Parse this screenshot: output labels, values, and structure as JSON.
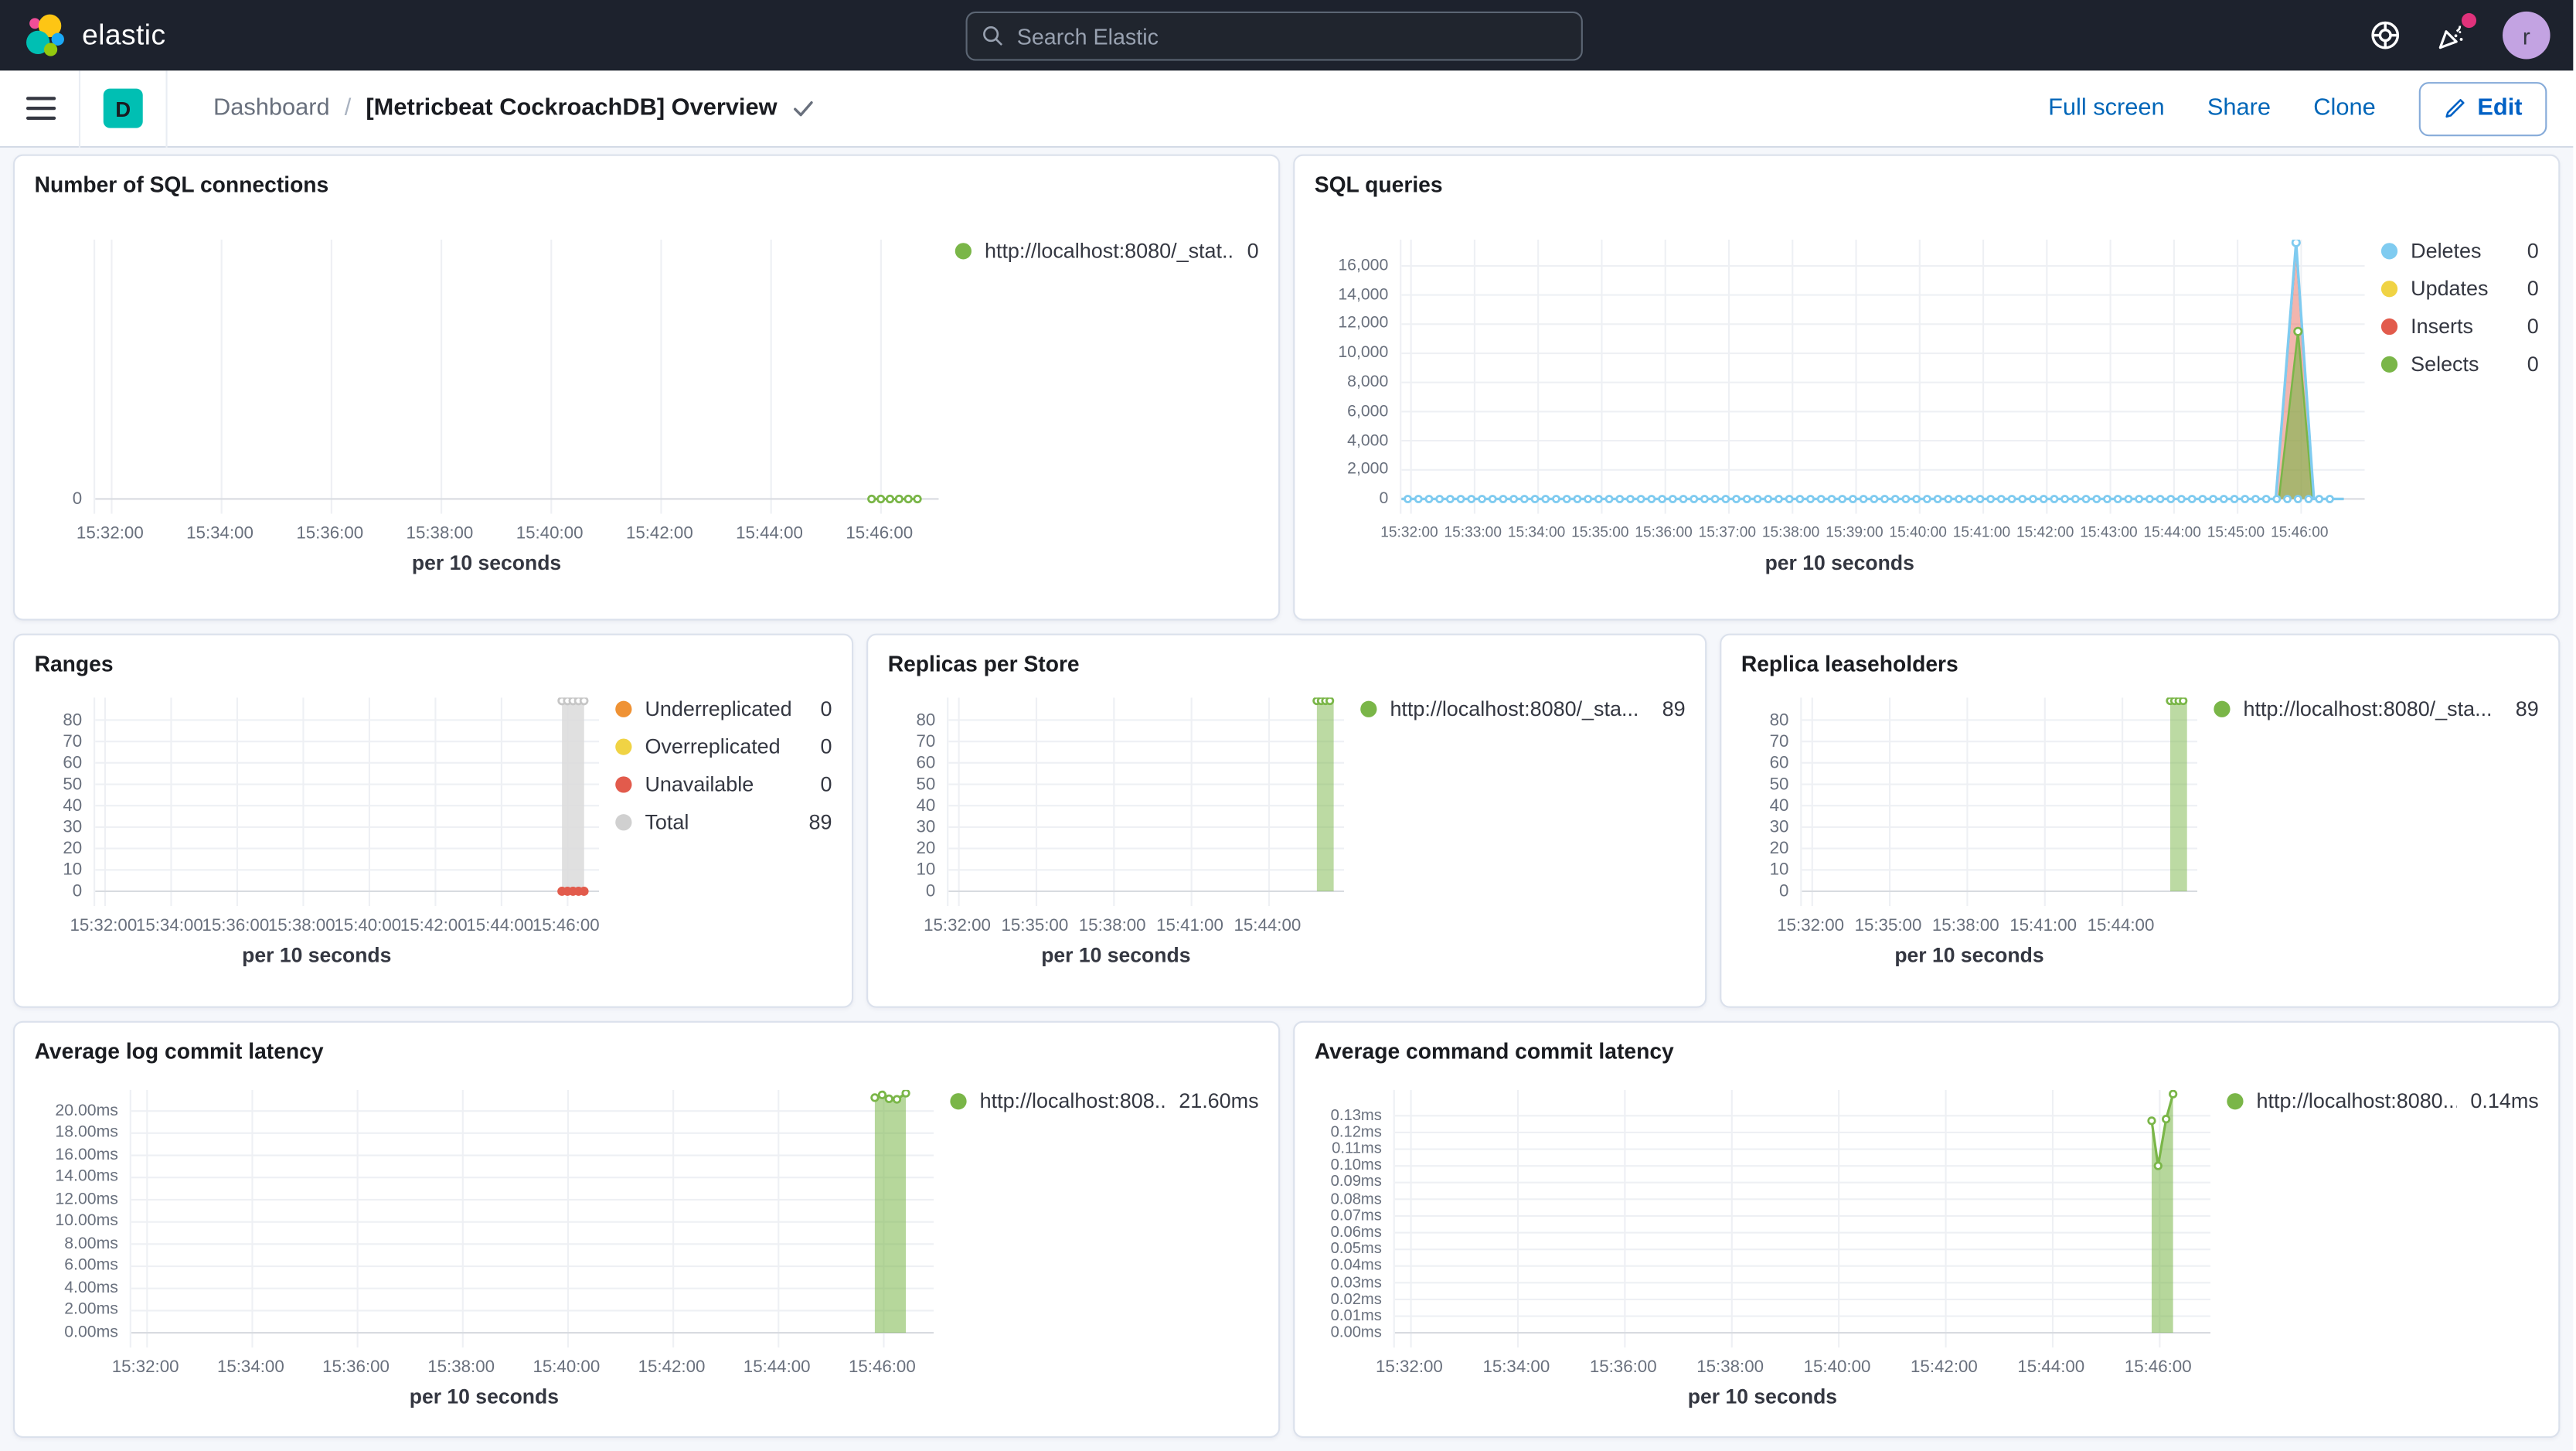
{
  "header": {
    "logo_text": "elastic",
    "search_placeholder": "Search Elastic"
  },
  "toolbar": {
    "space_badge": "D",
    "breadcrumb_root": "Dashboard",
    "breadcrumb_sep": "/",
    "title": "[Metricbeat CockroachDB] Overview",
    "full_screen_label": "Full screen",
    "share_label": "Share",
    "clone_label": "Clone",
    "edit_label": "Edit"
  },
  "colors": {
    "accent_teal": "#00bfb3",
    "link_blue": "#0066b8",
    "green": "#7ab648",
    "blue": "#7fcbf0",
    "yellow": "#f0d344",
    "red": "#e25b4c",
    "orange": "#ef9234",
    "gray": "#d0d0d0"
  },
  "chart_data": [
    {
      "id": "sql_connections",
      "type": "line",
      "title": "Number of SQL connections",
      "xlabel": "per 10 seconds",
      "x0": 931.7,
      "x1": 947.05,
      "ymax": 1,
      "pad_bottom": 9,
      "yw": 36,
      "lw": 185,
      "x_ticks": [
        {
          "t": 932,
          "label": "15:32:00"
        },
        {
          "t": 934,
          "label": "15:34:00"
        },
        {
          "t": 936,
          "label": "15:36:00"
        },
        {
          "t": 938,
          "label": "15:38:00"
        },
        {
          "t": 940,
          "label": "15:40:00"
        },
        {
          "t": 942,
          "label": "15:42:00"
        },
        {
          "t": 944,
          "label": "15:44:00"
        },
        {
          "t": 946,
          "label": "15:46:00"
        }
      ],
      "y_ticks": [
        {
          "v": 0,
          "label": "0"
        }
      ],
      "series": [
        {
          "name": "connections",
          "color": "#7ab648",
          "flat": 0,
          "from": 945.83,
          "to": 946.67,
          "step_s": 10,
          "w": 1.4,
          "markers": "pts",
          "mr": 2
        }
      ],
      "legend": {
        "items": [
          {
            "label": "http://localhost:8080/_stat...",
            "value": "0",
            "color": "#7ab648"
          }
        ]
      }
    },
    {
      "id": "sql_queries",
      "type": "area",
      "title": "SQL queries",
      "xlabel": "per 10 seconds",
      "x0": 931.85,
      "x1": 947.0,
      "ymax": 17800,
      "pad_bottom": 9,
      "yw": 52,
      "lw": 96,
      "xfs": "9px",
      "yfs": "10px",
      "x_ticks": [
        {
          "t": 932,
          "label": "15:32:00"
        },
        {
          "t": 933,
          "label": "15:33:00"
        },
        {
          "t": 934,
          "label": "15:34:00"
        },
        {
          "t": 935,
          "label": "15:35:00"
        },
        {
          "t": 936,
          "label": "15:36:00"
        },
        {
          "t": 937,
          "label": "15:37:00"
        },
        {
          "t": 938,
          "label": "15:38:00"
        },
        {
          "t": 939,
          "label": "15:39:00"
        },
        {
          "t": 940,
          "label": "15:40:00"
        },
        {
          "t": 941,
          "label": "15:41:00"
        },
        {
          "t": 942,
          "label": "15:42:00"
        },
        {
          "t": 943,
          "label": "15:43:00"
        },
        {
          "t": 944,
          "label": "15:44:00"
        },
        {
          "t": 945,
          "label": "15:45:00"
        },
        {
          "t": 946,
          "label": "15:46:00"
        }
      ],
      "y_ticks": [
        {
          "v": 0,
          "label": "0"
        },
        {
          "v": 2000,
          "label": "2,000"
        },
        {
          "v": 4000,
          "label": "4,000"
        },
        {
          "v": 6000,
          "label": "6,000"
        },
        {
          "v": 8000,
          "label": "8,000"
        },
        {
          "v": 10000,
          "label": "10,000"
        },
        {
          "v": 12000,
          "label": "12,000"
        },
        {
          "v": 14000,
          "label": "14,000"
        },
        {
          "v": 16000,
          "label": "16,000"
        }
      ],
      "series": [
        {
          "name": "Inserts",
          "color": "#e25b4c",
          "area": true,
          "fillop": 0.45,
          "w": 1.2,
          "points": [
            [
              931.85,
              0
            ],
            [
              945.6,
              0
            ],
            [
              945.92,
              17300
            ],
            [
              946.2,
              0
            ],
            [
              946.67,
              0
            ]
          ]
        },
        {
          "name": "Selects",
          "color": "#7ab648",
          "area": true,
          "fillop": 0.6,
          "w": 1.2,
          "points": [
            [
              931.85,
              0
            ],
            [
              945.65,
              0
            ],
            [
              945.95,
              11500
            ],
            [
              946.18,
              0
            ],
            [
              946.67,
              0
            ]
          ]
        },
        {
          "name": "Deletes",
          "color": "#7fcbf0",
          "w": 1.6,
          "points": [
            [
              931.85,
              0
            ],
            [
              945.6,
              0
            ],
            [
              945.92,
              17600
            ],
            [
              946.2,
              0
            ],
            [
              946.67,
              0
            ]
          ]
        },
        {
          "name": "Deletes zero markers",
          "color": "#7fcbf0",
          "kind": "dots",
          "mr": 1.9,
          "flat": 0,
          "from": 931.95,
          "to": 946.6,
          "step_s": 10
        },
        {
          "name": "Deletes peak marker",
          "color": "#7fcbf0",
          "kind": "dots",
          "mr": 2.2,
          "points": [
            [
              945.92,
              17600
            ]
          ]
        },
        {
          "name": "Selects peak marker",
          "color": "#7ab648",
          "kind": "dots",
          "mr": 2.2,
          "points": [
            [
              945.95,
              11500
            ]
          ]
        }
      ],
      "legend": {
        "items": [
          {
            "label": "Deletes",
            "value": "0",
            "color": "#7fcbf0"
          },
          {
            "label": "Updates",
            "value": "0",
            "color": "#f0d344"
          },
          {
            "label": "Inserts",
            "value": "0",
            "color": "#e25b4c"
          },
          {
            "label": "Selects",
            "value": "0",
            "color": "#7ab648"
          }
        ]
      }
    },
    {
      "id": "ranges",
      "type": "area",
      "title": "Ranges",
      "xlabel": "per 10 seconds",
      "x0": 931.7,
      "x1": 946.95,
      "ymax": 90.5,
      "pad_bottom": 9,
      "yw": 36,
      "lw": 132,
      "x_ticks": [
        {
          "t": 932,
          "label": "15:32:00"
        },
        {
          "t": 934,
          "label": "15:34:00"
        },
        {
          "t": 936,
          "label": "15:36:00"
        },
        {
          "t": 938,
          "label": "15:38:00"
        },
        {
          "t": 940,
          "label": "15:40:00"
        },
        {
          "t": 942,
          "label": "15:42:00"
        },
        {
          "t": 944,
          "label": "15:44:00"
        },
        {
          "t": 946,
          "label": "15:46:00"
        }
      ],
      "y_ticks": [
        {
          "v": 0,
          "label": "0"
        },
        {
          "v": 10,
          "label": "10"
        },
        {
          "v": 20,
          "label": "20"
        },
        {
          "v": 30,
          "label": "30"
        },
        {
          "v": 40,
          "label": "40"
        },
        {
          "v": 50,
          "label": "50"
        },
        {
          "v": 60,
          "label": "60"
        },
        {
          "v": 70,
          "label": "70"
        },
        {
          "v": 80,
          "label": "80"
        }
      ],
      "series": [
        {
          "name": "Total",
          "color": "#dadada",
          "area": true,
          "fillop": 0.85,
          "stroke": false,
          "points": [
            [
              945.83,
              89
            ],
            [
              946.5,
              89
            ]
          ]
        },
        {
          "name": "Total markers",
          "color": "#c6c6c6",
          "kind": "dots",
          "mr": 2.1,
          "flat": 89,
          "from": 945.83,
          "to": 946.5,
          "step_s": 10
        },
        {
          "name": "Unavailable",
          "color": "#e25b4c",
          "kind": "dots",
          "solid": true,
          "mr": 2.8,
          "flat": 0,
          "from": 945.83,
          "to": 946.5,
          "step_s": 10
        }
      ],
      "legend": {
        "items": [
          {
            "label": "Underreplicated",
            "value": "0",
            "color": "#ef9234"
          },
          {
            "label": "Overreplicated",
            "value": "0",
            "color": "#f0d344"
          },
          {
            "label": "Unavailable",
            "value": "0",
            "color": "#e25b4c"
          },
          {
            "label": "Total",
            "value": "89",
            "color": "#d0d0d0"
          }
        ]
      }
    },
    {
      "id": "replicas_per_store",
      "type": "area",
      "title": "Replicas per Store",
      "xlabel": "per 10 seconds",
      "x0": 931.6,
      "x1": 946.9,
      "ymax": 90.5,
      "pad_bottom": 9,
      "yw": 36,
      "lw": 198,
      "x_ticks": [
        {
          "t": 932,
          "label": "15:32:00"
        },
        {
          "t": 935,
          "label": "15:35:00"
        },
        {
          "t": 938,
          "label": "15:38:00"
        },
        {
          "t": 941,
          "label": "15:41:00"
        },
        {
          "t": 944,
          "label": "15:44:00"
        }
      ],
      "y_ticks": [
        {
          "v": 0,
          "label": "0"
        },
        {
          "v": 10,
          "label": "10"
        },
        {
          "v": 20,
          "label": "20"
        },
        {
          "v": 30,
          "label": "30"
        },
        {
          "v": 40,
          "label": "40"
        },
        {
          "v": 50,
          "label": "50"
        },
        {
          "v": 60,
          "label": "60"
        },
        {
          "v": 70,
          "label": "70"
        },
        {
          "v": 80,
          "label": "80"
        }
      ],
      "series": [
        {
          "name": "replicas",
          "color": "#7ab648",
          "area": true,
          "fillop": 0.5,
          "w": 1.4,
          "points": [
            [
              945.85,
              89
            ],
            [
              946.5,
              89
            ]
          ]
        },
        {
          "name": "replicas markers",
          "color": "#7ab648",
          "kind": "dots",
          "mr": 2,
          "flat": 89,
          "from": 945.85,
          "to": 946.5,
          "step_s": 10
        }
      ],
      "legend": {
        "items": [
          {
            "label": "http://localhost:8080/_sta...",
            "value": "89",
            "color": "#7ab648"
          }
        ]
      }
    },
    {
      "id": "replica_leaseholders",
      "type": "area",
      "title": "Replica leaseholders",
      "xlabel": "per 10 seconds",
      "x0": 931.6,
      "x1": 946.9,
      "ymax": 90.5,
      "pad_bottom": 9,
      "yw": 36,
      "lw": 198,
      "x_ticks": [
        {
          "t": 932,
          "label": "15:32:00"
        },
        {
          "t": 935,
          "label": "15:35:00"
        },
        {
          "t": 938,
          "label": "15:38:00"
        },
        {
          "t": 941,
          "label": "15:41:00"
        },
        {
          "t": 944,
          "label": "15:44:00"
        }
      ],
      "y_ticks": [
        {
          "v": 0,
          "label": "0"
        },
        {
          "v": 10,
          "label": "10"
        },
        {
          "v": 20,
          "label": "20"
        },
        {
          "v": 30,
          "label": "30"
        },
        {
          "v": 40,
          "label": "40"
        },
        {
          "v": 50,
          "label": "50"
        },
        {
          "v": 60,
          "label": "60"
        },
        {
          "v": 70,
          "label": "70"
        },
        {
          "v": 80,
          "label": "80"
        }
      ],
      "series": [
        {
          "name": "leaseholders",
          "color": "#7ab648",
          "area": true,
          "fillop": 0.5,
          "w": 1.4,
          "points": [
            [
              945.85,
              89
            ],
            [
              946.5,
              89
            ]
          ]
        },
        {
          "name": "leaseholders markers",
          "color": "#7ab648",
          "kind": "dots",
          "mr": 2,
          "flat": 89,
          "from": 945.85,
          "to": 946.5,
          "step_s": 10
        }
      ],
      "legend": {
        "items": [
          {
            "label": "http://localhost:8080/_sta...",
            "value": "89",
            "color": "#7ab648"
          }
        ]
      }
    },
    {
      "id": "avg_log_commit_latency",
      "type": "area",
      "title": "Average log commit latency",
      "xlabel": "per 10 seconds",
      "x0": 931.7,
      "x1": 946.95,
      "ymax": 21.9,
      "pad_bottom": 9,
      "yw": 58,
      "lw": 188,
      "yfs": "10px",
      "x_ticks": [
        {
          "t": 932,
          "label": "15:32:00"
        },
        {
          "t": 934,
          "label": "15:34:00"
        },
        {
          "t": 936,
          "label": "15:36:00"
        },
        {
          "t": 938,
          "label": "15:38:00"
        },
        {
          "t": 940,
          "label": "15:40:00"
        },
        {
          "t": 942,
          "label": "15:42:00"
        },
        {
          "t": 944,
          "label": "15:44:00"
        },
        {
          "t": 946,
          "label": "15:46:00"
        }
      ],
      "y_ticks": [
        {
          "v": 0,
          "label": "0.00ms"
        },
        {
          "v": 2,
          "label": "2.00ms"
        },
        {
          "v": 4,
          "label": "4.00ms"
        },
        {
          "v": 6,
          "label": "6.00ms"
        },
        {
          "v": 8,
          "label": "8.00ms"
        },
        {
          "v": 10,
          "label": "10.00ms"
        },
        {
          "v": 12,
          "label": "12.00ms"
        },
        {
          "v": 14,
          "label": "14.00ms"
        },
        {
          "v": 16,
          "label": "16.00ms"
        },
        {
          "v": 18,
          "label": "18.00ms"
        },
        {
          "v": 20,
          "label": "20.00ms"
        }
      ],
      "series": [
        {
          "name": "log commit latency",
          "color": "#7ab648",
          "area": true,
          "fillop": 0.55,
          "w": 1.5,
          "markers": "pts",
          "mr": 2,
          "points": [
            [
              945.83,
              21.2
            ],
            [
              945.97,
              21.45
            ],
            [
              946.1,
              21.1
            ],
            [
              946.25,
              21.05
            ],
            [
              946.42,
              21.6
            ]
          ]
        }
      ],
      "legend": {
        "items": [
          {
            "label": "http://localhost:808...",
            "value": "21.60ms",
            "color": "#7ab648"
          }
        ]
      }
    },
    {
      "id": "avg_command_commit_latency",
      "type": "area",
      "title": "Average command commit latency",
      "xlabel": "per 10 seconds",
      "x0": 931.7,
      "x1": 946.95,
      "ymax": 0.1455,
      "pad_bottom": 9,
      "yw": 48,
      "lw": 190,
      "yfs": "9.5px",
      "x_ticks": [
        {
          "t": 932,
          "label": "15:32:00"
        },
        {
          "t": 934,
          "label": "15:34:00"
        },
        {
          "t": 936,
          "label": "15:36:00"
        },
        {
          "t": 938,
          "label": "15:38:00"
        },
        {
          "t": 940,
          "label": "15:40:00"
        },
        {
          "t": 942,
          "label": "15:42:00"
        },
        {
          "t": 944,
          "label": "15:44:00"
        },
        {
          "t": 946,
          "label": "15:46:00"
        }
      ],
      "y_ticks": [
        {
          "v": 0,
          "label": "0.00ms"
        },
        {
          "v": 0.01,
          "label": "0.01ms"
        },
        {
          "v": 0.02,
          "label": "0.02ms"
        },
        {
          "v": 0.03,
          "label": "0.03ms"
        },
        {
          "v": 0.04,
          "label": "0.04ms"
        },
        {
          "v": 0.05,
          "label": "0.05ms"
        },
        {
          "v": 0.06,
          "label": "0.06ms"
        },
        {
          "v": 0.07,
          "label": "0.07ms"
        },
        {
          "v": 0.08,
          "label": "0.08ms"
        },
        {
          "v": 0.09,
          "label": "0.09ms"
        },
        {
          "v": 0.1,
          "label": "0.10ms"
        },
        {
          "v": 0.11,
          "label": "0.11ms"
        },
        {
          "v": 0.12,
          "label": "0.12ms"
        },
        {
          "v": 0.13,
          "label": "0.13ms"
        }
      ],
      "series": [
        {
          "name": "command commit latency",
          "color": "#7ab648",
          "area": true,
          "fillop": 0.55,
          "w": 1.5,
          "markers": "pts",
          "mr": 2,
          "points": [
            [
              945.85,
              0.127
            ],
            [
              945.97,
              0.1
            ],
            [
              946.12,
              0.128
            ],
            [
              946.25,
              0.143
            ]
          ]
        }
      ],
      "legend": {
        "items": [
          {
            "label": "http://localhost:8080...",
            "value": "0.14ms",
            "color": "#7ab648"
          }
        ]
      }
    }
  ]
}
